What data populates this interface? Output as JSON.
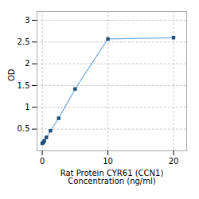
{
  "chart_data": {
    "type": "line",
    "x": [
      0,
      0.156,
      0.3125,
      0.625,
      1.25,
      2.5,
      5,
      10,
      20
    ],
    "series": [
      {
        "type": "line",
        "color": "#7aaed6",
        "line_style": "solid",
        "values": [
          0.172,
          0.192,
          0.228,
          0.308,
          0.462,
          0.748,
          1.42,
          2.57,
          2.6
        ]
      },
      {
        "type": "scatter",
        "color": "#1f4e79",
        "marker": "square",
        "values": [
          0.172,
          0.192,
          0.228,
          0.308,
          0.462,
          0.748,
          1.42,
          2.57,
          2.6
        ]
      }
    ],
    "xlabel": "Rat Protein CYR61 (CCN1)\nConcentration (ng/ml)",
    "ylabel": "OD",
    "xlim": [
      -0.8,
      22
    ],
    "xticks": [
      0,
      10,
      20
    ],
    "ylim": [
      0.0,
      3.2
    ],
    "yticks": [
      0.5,
      1.0,
      1.5,
      2.0,
      2.5,
      3.0
    ],
    "grid": true
  }
}
